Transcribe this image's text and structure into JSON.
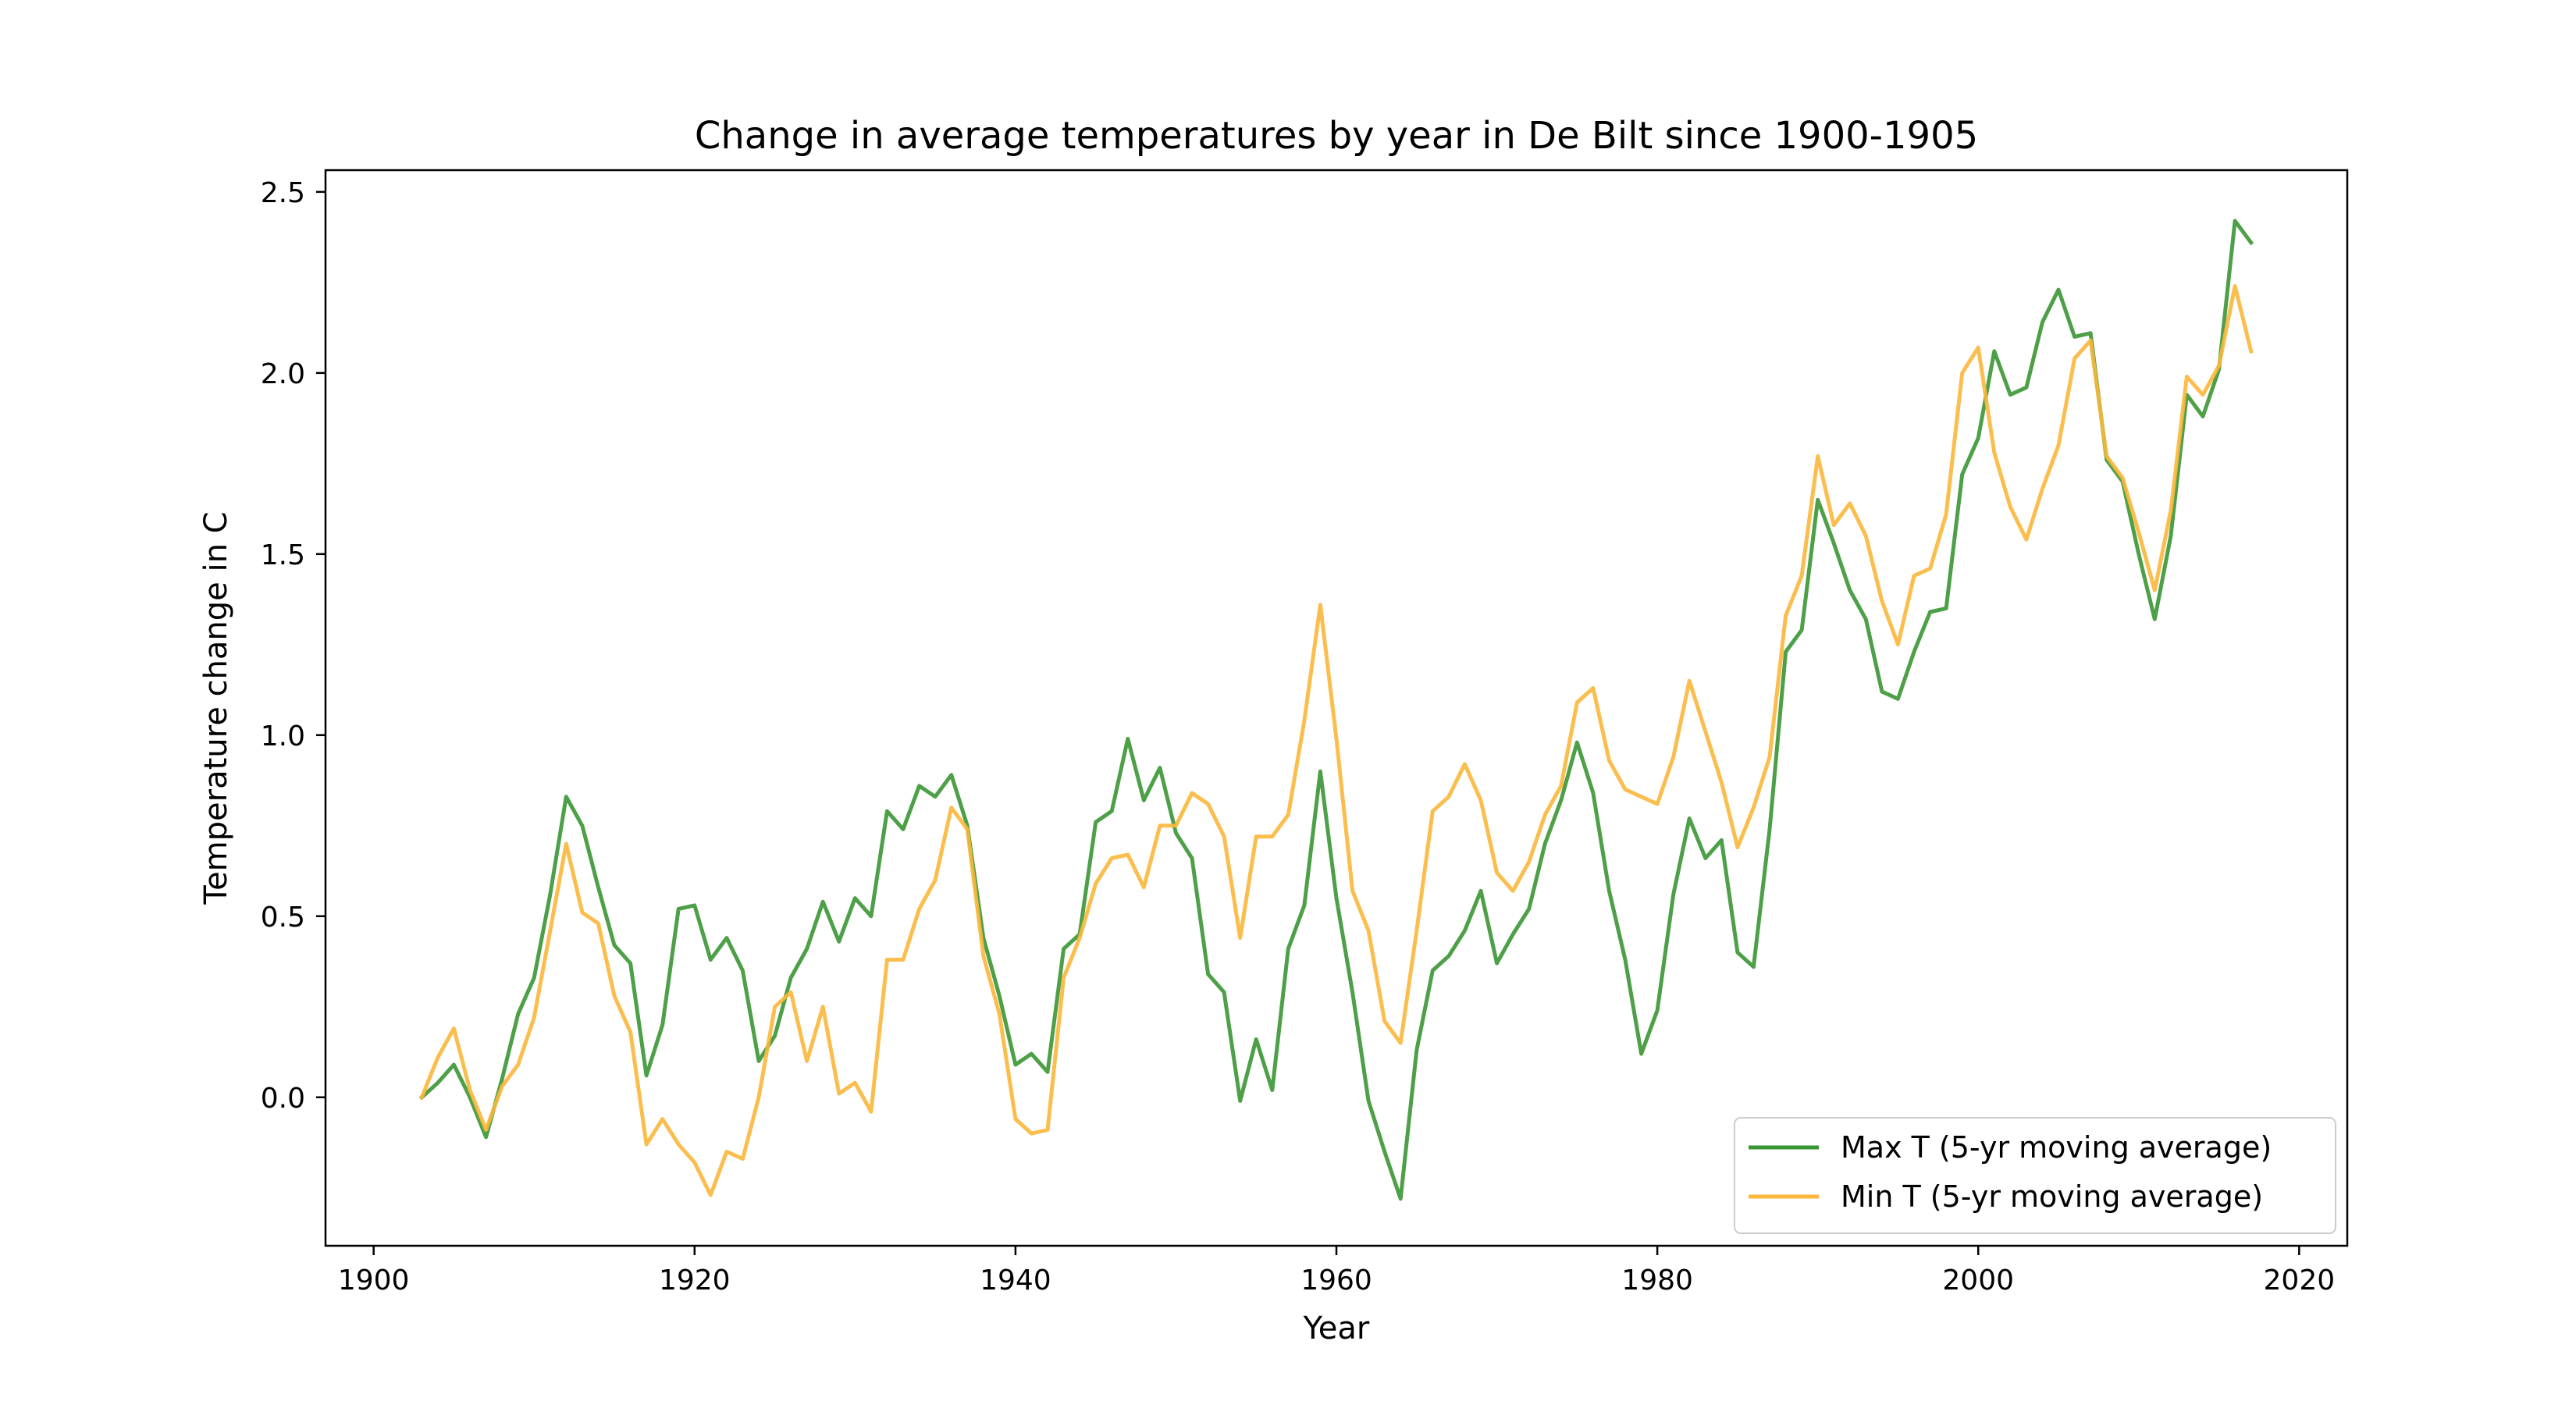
{
  "chart_data": {
    "type": "line",
    "title": "Change in average temperatures by year in De Bilt since 1900-1905",
    "xlabel": "Year",
    "ylabel": "Temperature change in C",
    "xlim": [
      1897,
      2023
    ],
    "ylim": [
      -0.41,
      2.56
    ],
    "xticks": [
      1900,
      1920,
      1940,
      1960,
      1980,
      2000,
      2020
    ],
    "xtick_labels": [
      "1900",
      "1920",
      "1940",
      "1960",
      "1980",
      "2000",
      "2020"
    ],
    "yticks": [
      0.0,
      0.5,
      1.0,
      1.5,
      2.0,
      2.5
    ],
    "ytick_labels": [
      "0.0",
      "0.5",
      "1.0",
      "1.5",
      "2.0",
      "2.5"
    ],
    "grid": false,
    "legend_position": "bottom-right",
    "x_start": 1903,
    "series": [
      {
        "name": "Max T (5-yr moving average)",
        "color": "#3a9634",
        "values": [
          0.0,
          0.04,
          0.09,
          0.0,
          -0.11,
          0.05,
          0.23,
          0.33,
          0.56,
          0.83,
          0.75,
          0.58,
          0.42,
          0.37,
          0.06,
          0.2,
          0.52,
          0.53,
          0.38,
          0.44,
          0.35,
          0.1,
          0.17,
          0.33,
          0.41,
          0.54,
          0.43,
          0.55,
          0.5,
          0.79,
          0.74,
          0.86,
          0.83,
          0.89,
          0.75,
          0.44,
          0.28,
          0.09,
          0.12,
          0.07,
          0.41,
          0.45,
          0.76,
          0.79,
          0.99,
          0.82,
          0.91,
          0.73,
          0.66,
          0.34,
          0.29,
          -0.01,
          0.16,
          0.02,
          0.41,
          0.53,
          0.9,
          0.55,
          0.29,
          -0.01,
          -0.15,
          -0.28,
          0.13,
          0.35,
          0.39,
          0.46,
          0.57,
          0.37,
          0.45,
          0.52,
          0.7,
          0.82,
          0.98,
          0.84,
          0.57,
          0.38,
          0.12,
          0.24,
          0.56,
          0.77,
          0.66,
          0.71,
          0.4,
          0.36,
          0.74,
          1.23,
          1.29,
          1.65,
          1.53,
          1.4,
          1.32,
          1.12,
          1.1,
          1.23,
          1.34,
          1.35,
          1.72,
          1.82,
          2.06,
          1.94,
          1.96,
          2.14,
          2.23,
          2.1,
          2.11,
          1.76,
          1.7,
          1.5,
          1.32,
          1.55,
          1.94,
          1.88,
          2.01,
          2.42,
          2.36
        ]
      },
      {
        "name": "Min T (5-yr moving average)",
        "color": "#fbb73b",
        "values": [
          0.0,
          0.11,
          0.19,
          0.02,
          -0.09,
          0.03,
          0.09,
          0.22,
          0.46,
          0.7,
          0.51,
          0.48,
          0.28,
          0.18,
          -0.13,
          -0.06,
          -0.13,
          -0.18,
          -0.27,
          -0.15,
          -0.17,
          0.0,
          0.25,
          0.29,
          0.1,
          0.25,
          0.01,
          0.04,
          -0.04,
          0.38,
          0.38,
          0.52,
          0.6,
          0.8,
          0.74,
          0.39,
          0.23,
          -0.06,
          -0.1,
          -0.09,
          0.33,
          0.44,
          0.59,
          0.66,
          0.67,
          0.58,
          0.75,
          0.75,
          0.84,
          0.81,
          0.72,
          0.44,
          0.72,
          0.72,
          0.78,
          1.04,
          1.36,
          0.99,
          0.57,
          0.46,
          0.21,
          0.15,
          0.46,
          0.79,
          0.83,
          0.92,
          0.82,
          0.62,
          0.57,
          0.65,
          0.78,
          0.86,
          1.09,
          1.13,
          0.93,
          0.85,
          0.83,
          0.81,
          0.94,
          1.15,
          1.01,
          0.87,
          0.69,
          0.8,
          0.94,
          1.33,
          1.44,
          1.77,
          1.58,
          1.64,
          1.55,
          1.37,
          1.25,
          1.44,
          1.46,
          1.61,
          2.0,
          2.07,
          1.78,
          1.63,
          1.54,
          1.68,
          1.8,
          2.04,
          2.09,
          1.77,
          1.71,
          1.56,
          1.4,
          1.62,
          1.99,
          1.94,
          2.02,
          2.24,
          2.06
        ]
      }
    ]
  }
}
